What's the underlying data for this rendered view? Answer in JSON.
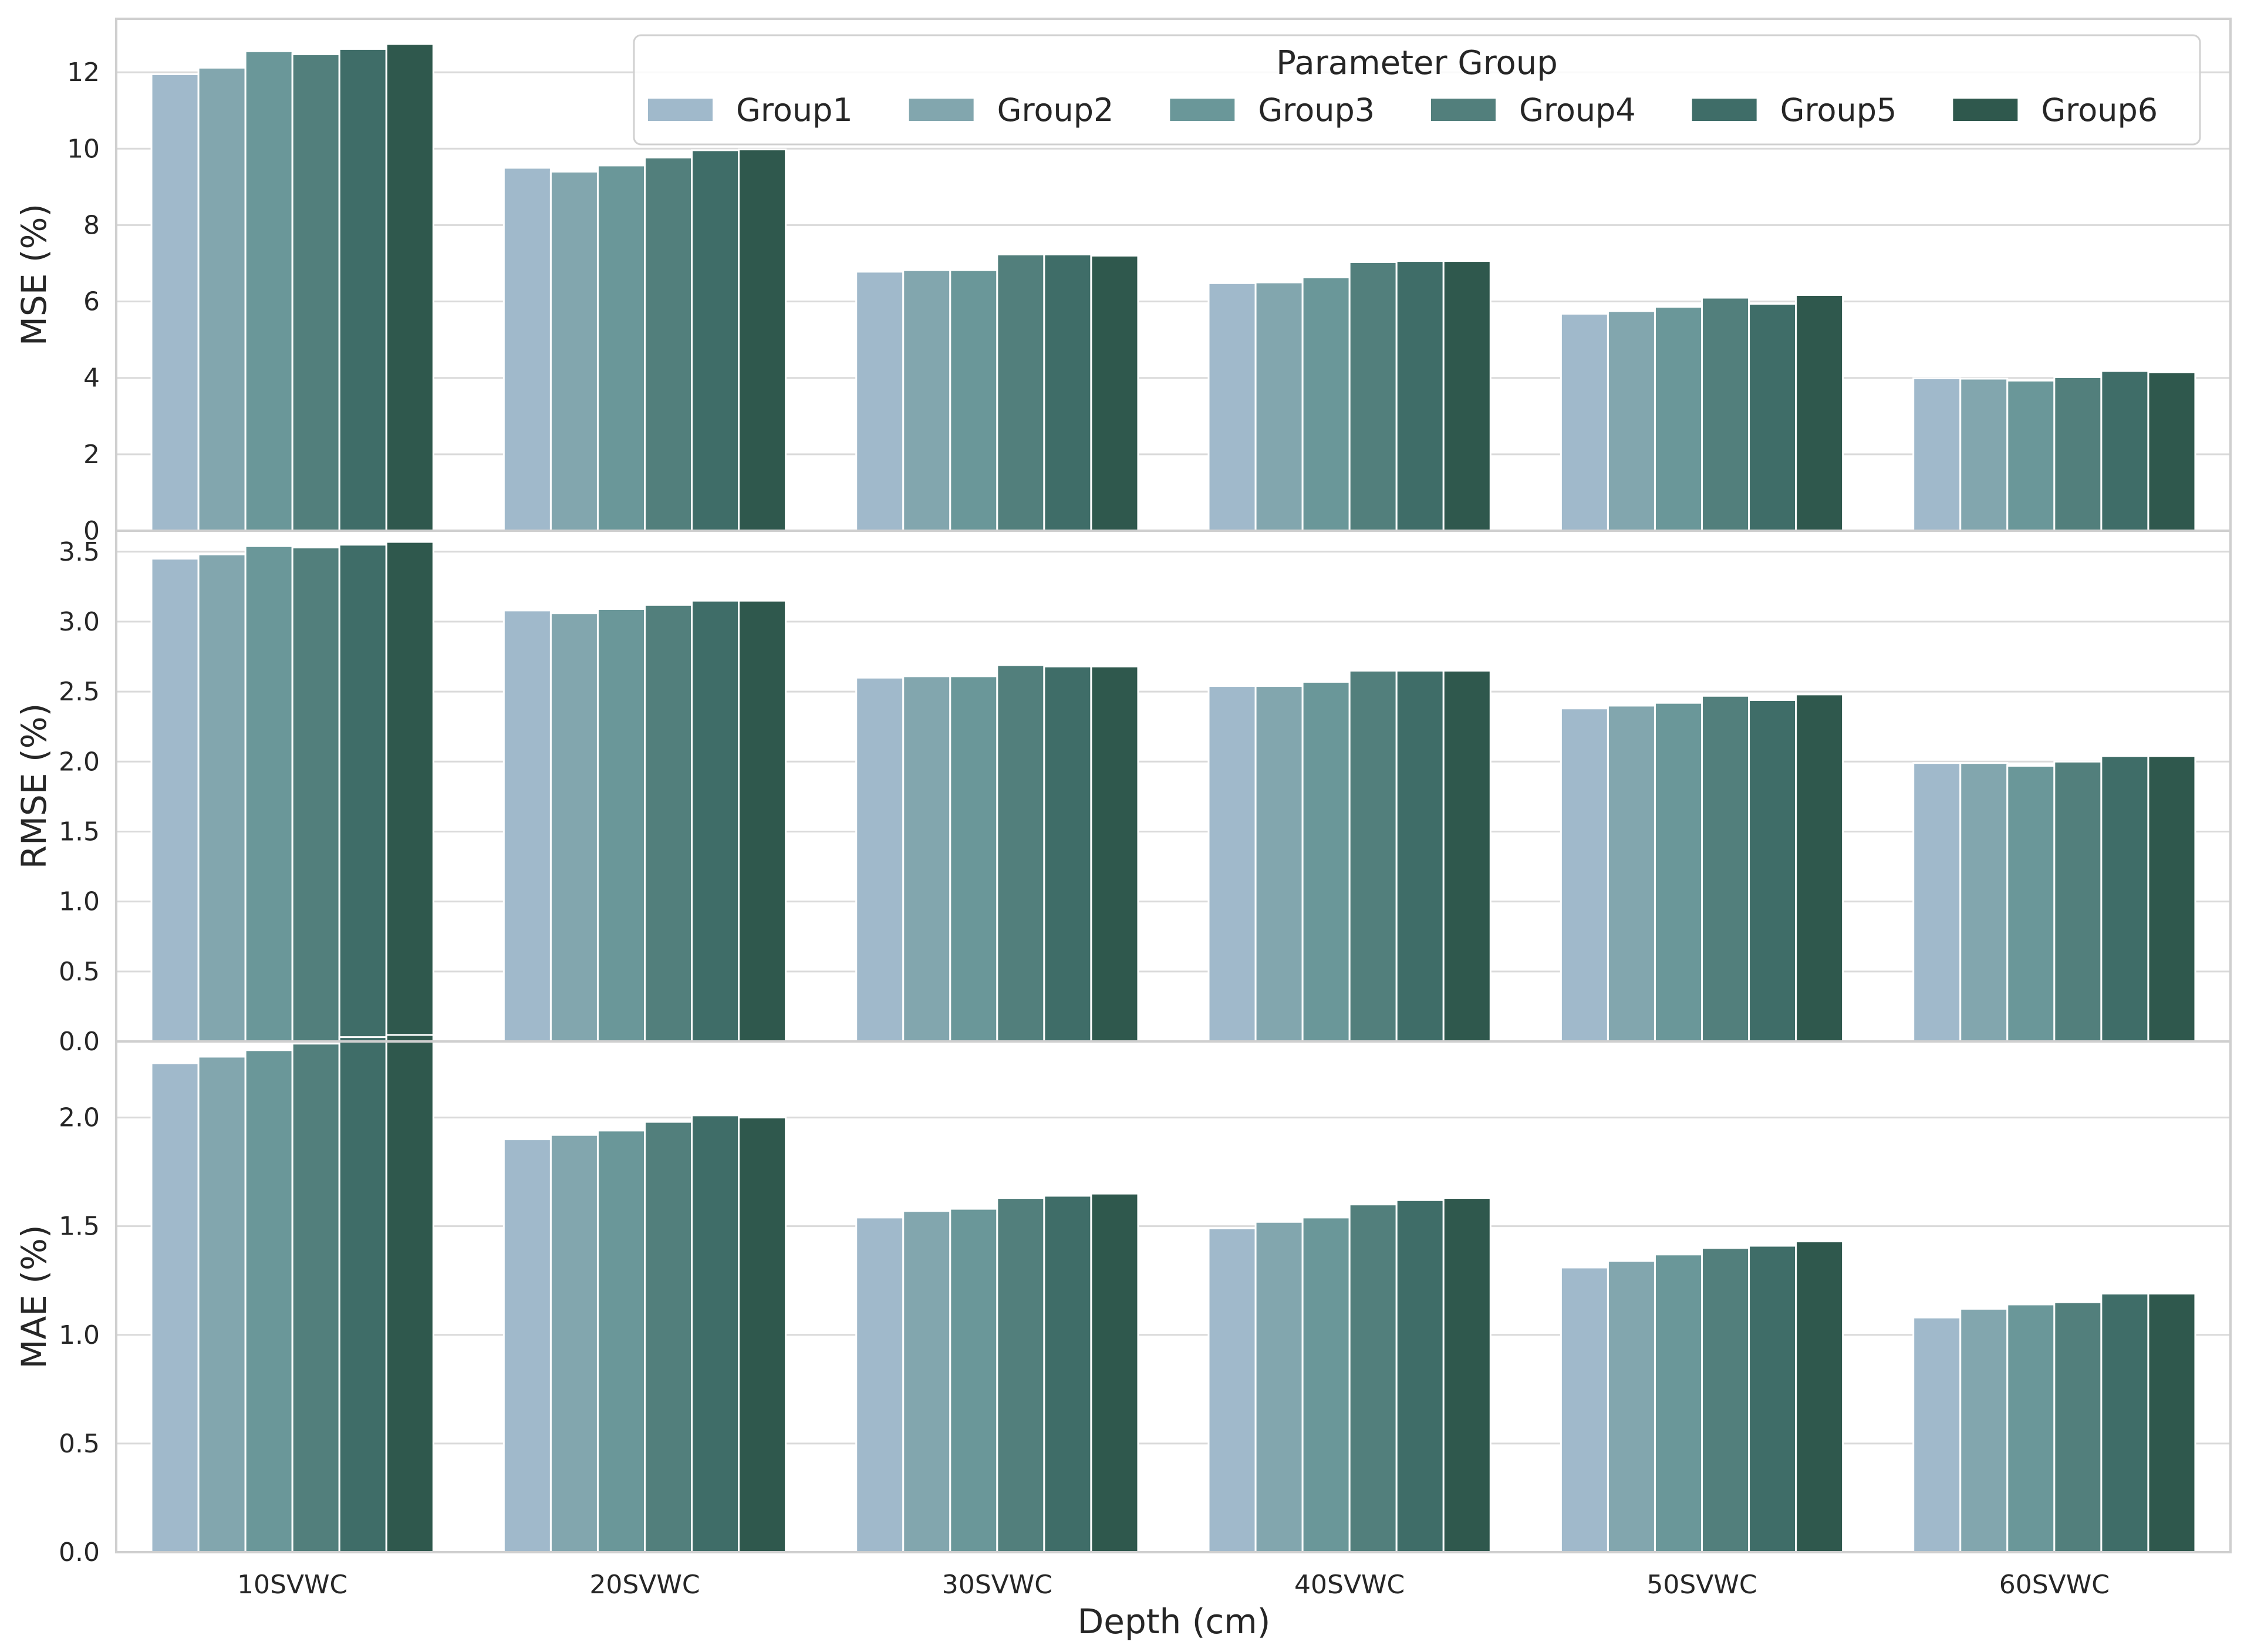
{
  "chart_data": {
    "type": "bar",
    "xlabel": "Depth (cm)",
    "categories": [
      "10SVWC",
      "20SVWC",
      "30SVWC",
      "40SVWC",
      "50SVWC",
      "60SVWC"
    ],
    "legend": {
      "title": "Parameter Group",
      "placement": "top-right (upper panel)",
      "entries": [
        "Group1",
        "Group2",
        "Group3",
        "Group4",
        "Group5",
        "Group6"
      ]
    },
    "colors": [
      "#a0b9cb",
      "#82a6ae",
      "#6a9799",
      "#527f7c",
      "#3f6d68",
      "#2f584d"
    ],
    "grid": true,
    "panels": [
      {
        "ylabel": "MSE (%)",
        "ylim": [
          0,
          13.4
        ],
        "yticks": [
          "0",
          "2",
          "4",
          "6",
          "8",
          "10",
          "12"
        ],
        "series": [
          {
            "name": "Group1",
            "values": [
              11.95,
              9.5,
              6.78,
              6.48,
              5.68,
              3.99
            ]
          },
          {
            "name": "Group2",
            "values": [
              12.12,
              9.4,
              6.82,
              6.5,
              5.75,
              3.98
            ]
          },
          {
            "name": "Group3",
            "values": [
              12.55,
              9.56,
              6.82,
              6.63,
              5.86,
              3.93
            ]
          },
          {
            "name": "Group4",
            "values": [
              12.47,
              9.77,
              7.23,
              7.03,
              6.1,
              4.02
            ]
          },
          {
            "name": "Group5",
            "values": [
              12.61,
              9.96,
              7.23,
              7.06,
              5.94,
              4.18
            ]
          },
          {
            "name": "Group6",
            "values": [
              12.74,
              9.98,
              7.2,
              7.06,
              6.17,
              4.15
            ]
          }
        ]
      },
      {
        "ylabel": "RMSE (%)",
        "ylim": [
          0,
          3.65
        ],
        "yticks": [
          "0.0",
          "0.5",
          "1.0",
          "1.5",
          "2.0",
          "2.5",
          "3.0",
          "3.5"
        ],
        "series": [
          {
            "name": "Group1",
            "values": [
              3.45,
              3.08,
              2.6,
              2.54,
              2.38,
              1.99
            ]
          },
          {
            "name": "Group2",
            "values": [
              3.48,
              3.06,
              2.61,
              2.54,
              2.4,
              1.99
            ]
          },
          {
            "name": "Group3",
            "values": [
              3.54,
              3.09,
              2.61,
              2.57,
              2.42,
              1.97
            ]
          },
          {
            "name": "Group4",
            "values": [
              3.53,
              3.12,
              2.69,
              2.65,
              2.47,
              2.0
            ]
          },
          {
            "name": "Group5",
            "values": [
              3.55,
              3.15,
              2.68,
              2.65,
              2.44,
              2.04
            ]
          },
          {
            "name": "Group6",
            "values": [
              3.57,
              3.15,
              2.68,
              2.65,
              2.48,
              2.04
            ]
          }
        ]
      },
      {
        "ylabel": "MAE (%)",
        "ylim": [
          0,
          2.35
        ],
        "yticks": [
          "0.0",
          "0.5",
          "1.0",
          "1.5",
          "2.0"
        ],
        "series": [
          {
            "name": "Group1",
            "values": [
              2.25,
              1.9,
              1.54,
              1.49,
              1.31,
              1.08
            ]
          },
          {
            "name": "Group2",
            "values": [
              2.28,
              1.92,
              1.57,
              1.52,
              1.34,
              1.12
            ]
          },
          {
            "name": "Group3",
            "values": [
              2.31,
              1.94,
              1.58,
              1.54,
              1.37,
              1.14
            ]
          },
          {
            "name": "Group4",
            "values": [
              2.34,
              1.98,
              1.63,
              1.6,
              1.4,
              1.15
            ]
          },
          {
            "name": "Group5",
            "values": [
              2.37,
              2.01,
              1.64,
              1.62,
              1.41,
              1.19
            ]
          },
          {
            "name": "Group6",
            "values": [
              2.38,
              2.0,
              1.65,
              1.63,
              1.43,
              1.19
            ]
          }
        ]
      }
    ]
  }
}
